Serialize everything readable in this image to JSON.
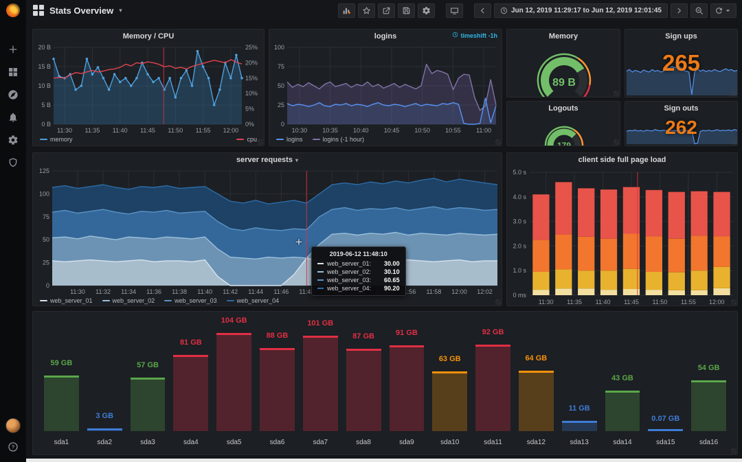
{
  "header": {
    "title": "Stats Overview",
    "time_range": "Jun 12, 2019 11:29:17 to Jun 12, 2019 12:01:45",
    "toolbar_icons": [
      "add-panel",
      "star",
      "share",
      "save",
      "settings"
    ],
    "view_icons": [
      "tv"
    ],
    "time_icons": [
      "chevron-left",
      "clock",
      "chevron-right",
      "zoom-out",
      "refresh",
      "caret-down"
    ],
    "nav_icons": [
      "apps-grid",
      "caret-down"
    ]
  },
  "sidebar": {
    "top_icons": [
      "plus",
      "dashboards",
      "explore",
      "alerting",
      "configuration",
      "shield"
    ],
    "bottom_icons": [
      "avatar",
      "help"
    ]
  },
  "colors": {
    "accent_orange": "#ee7a16",
    "green": "#73bf69",
    "red": "#e02f44",
    "cyan_badge": "#33b5e5"
  },
  "panels": {
    "memory_cpu": {
      "title": "Memory / CPU",
      "chart_data": {
        "type": "line",
        "x_ticks": [
          "11:30",
          "11:35",
          "11:40",
          "11:45",
          "11:50",
          "11:55",
          "12:00"
        ],
        "y_left_ticks": [
          "0 B",
          "5 B",
          "10 B",
          "15 B",
          "20 B"
        ],
        "y_right_ticks": [
          "0%",
          "5%",
          "10%",
          "15%",
          "20%",
          "25%"
        ],
        "y_left_max": 20,
        "y_right_max": 25,
        "series": [
          {
            "name": "memory",
            "axis": "left",
            "color": "#4ea1e0",
            "fill": "rgba(51,120,177,0.32)",
            "markers": true,
            "values": [
              17,
              12.5,
              12,
              13,
              9,
              10,
              17,
              13,
              14.8,
              12,
              9,
              13,
              11,
              12,
              10,
              12,
              16,
              13,
              11,
              12,
              9,
              12,
              7,
              12,
              14,
              10,
              19,
              15,
              12,
              5,
              9,
              16,
              12,
              18,
              12
            ]
          },
          {
            "name": "cpu",
            "axis": "right",
            "color": "#e0444e",
            "values": [
              15,
              15.2,
              15,
              16,
              16.8,
              16.5,
              17,
              17.5,
              17,
              17.3,
              17.8,
              18,
              18.5,
              19.5,
              19,
              20,
              19.7,
              20.3,
              20,
              19.5,
              18.7,
              19,
              18.2,
              18.5,
              18,
              18.8,
              19.3,
              19.8,
              20.3,
              20.8,
              20.4,
              20,
              21,
              20.2,
              19.6
            ]
          }
        ]
      }
    },
    "logins": {
      "title": "logins",
      "badge": "timeshift -1h",
      "chart_data": {
        "type": "line",
        "x_ticks": [
          "10:30",
          "10:35",
          "10:40",
          "10:45",
          "10:50",
          "10:55",
          "11:00"
        ],
        "y_left_ticks": [
          "0",
          "25",
          "50",
          "75",
          "100"
        ],
        "y_left_max": 100,
        "series": [
          {
            "name": "logins (-1 hour)",
            "color": "#8173a8",
            "fill": "rgba(115,98,165,0.28)",
            "values": [
              55,
              48,
              52,
              49,
              54,
              50,
              46,
              52,
              55,
              49,
              51,
              53,
              48,
              52,
              50,
              55,
              49,
              52,
              47,
              50,
              53,
              48,
              52,
              49,
              46,
              50,
              78,
              66,
              70,
              68,
              65,
              45,
              60,
              65,
              64,
              35,
              18,
              24,
              58,
              25
            ]
          },
          {
            "name": "logins",
            "color": "#5794f2",
            "fill": "rgba(87,148,242,0.14)",
            "values": [
              27,
              24,
              26,
              25,
              23,
              25,
              28,
              24,
              23,
              26,
              25,
              27,
              24,
              26,
              25,
              23,
              26,
              28,
              25,
              24,
              26,
              25,
              23,
              25,
              27,
              24,
              26,
              25,
              24,
              27,
              26,
              28,
              26,
              1,
              0,
              0,
              1,
              34,
              2,
              24
            ]
          }
        ]
      }
    },
    "memory_gauge": {
      "title": "Memory",
      "value": "89 B"
    },
    "sign_ups": {
      "title": "Sign ups",
      "value": "265",
      "chart_data": {
        "type": "area-spark",
        "color": "#5794f2",
        "fill": "rgba(70,120,180,0.35)",
        "values": [
          60,
          64,
          58,
          62,
          60,
          57,
          63,
          60,
          58,
          64,
          60,
          62,
          58,
          60,
          74,
          66,
          72,
          68,
          75,
          70,
          62,
          60,
          58,
          2,
          58,
          66,
          60,
          63,
          59,
          62,
          60,
          64,
          61,
          59,
          63,
          66,
          62,
          64,
          60,
          62
        ]
      }
    },
    "logouts": {
      "title": "Logouts",
      "value": "179"
    },
    "sign_outs": {
      "title": "Sign outs",
      "value": "262",
      "chart_data": {
        "type": "area-spark",
        "color": "#5794f2",
        "fill": "rgba(70,120,180,0.35)",
        "values": [
          58,
          62,
          60,
          64,
          59,
          62,
          58,
          63,
          61,
          59,
          66,
          62,
          60,
          63,
          61,
          64,
          60,
          62,
          59,
          63,
          66,
          60,
          62,
          64,
          2,
          4,
          58,
          62,
          60,
          63,
          59,
          62,
          65,
          60,
          63,
          61,
          64,
          60,
          66,
          62
        ]
      }
    },
    "server_requests": {
      "title": "server requests",
      "tooltip": {
        "time": "2019-06-12 11:48:10",
        "rows": [
          {
            "name": "web_server_01:",
            "value": "30.00"
          },
          {
            "name": "web_server_02:",
            "value": "30.10"
          },
          {
            "name": "web_server_03:",
            "value": "60.65"
          },
          {
            "name": "web_server_04:",
            "value": "90.20"
          }
        ]
      },
      "chart_data": {
        "type": "area",
        "x_ticks": [
          "11:30",
          "11:32",
          "11:34",
          "11:36",
          "11:38",
          "11:40",
          "11:42",
          "11:44",
          "11:46",
          "11:48",
          "11:50",
          "11:52",
          "11:54",
          "11:56",
          "11:58",
          "12:00",
          "12:02"
        ],
        "y_left_ticks": [
          "0",
          "25",
          "50",
          "75",
          "100",
          "125"
        ],
        "y_left_max": 125,
        "series": [
          {
            "name": "web_server_04",
            "color": "#2d6ca6",
            "fill": "#1d4266",
            "values": [
              107,
              109,
              106,
              108,
              110,
              107,
              105,
              108,
              107,
              109,
              106,
              107,
              108,
              100,
              92,
              90,
              93,
              89,
              91,
              93,
              90,
              100,
              110,
              112,
              110,
              113,
              111,
              114,
              112,
              115,
              117,
              113,
              116,
              114,
              112,
              110
            ]
          },
          {
            "name": "web_server_03",
            "color": "#5b93c4",
            "fill": "#35689a",
            "values": [
              80,
              82,
              79,
              81,
              83,
              80,
              78,
              81,
              80,
              82,
              79,
              80,
              81,
              70,
              62,
              60,
              63,
              61,
              60,
              62,
              61,
              75,
              83,
              85,
              82,
              84,
              83,
              85,
              82,
              84,
              86,
              83,
              85,
              84,
              82,
              83
            ]
          },
          {
            "name": "web_server_02",
            "color": "#9cc0dc",
            "fill": "#6d93b4",
            "values": [
              52,
              53,
              51,
              54,
              52,
              50,
              53,
              52,
              51,
              53,
              52,
              51,
              53,
              40,
              31,
              30,
              29,
              31,
              30,
              31,
              30,
              45,
              56,
              57,
              55,
              57,
              56,
              58,
              55,
              57,
              56,
              55,
              57,
              56,
              55,
              56
            ]
          },
          {
            "name": "web_server_01",
            "color": "#d5e3ee",
            "fill": "#a8bdcc",
            "values": [
              27,
              26,
              27,
              28,
              27,
              26,
              27,
              28,
              26,
              27,
              27,
              26,
              28,
              10,
              0,
              0,
              0,
              0,
              0,
              12,
              30,
              27,
              26,
              27,
              28,
              27,
              26,
              27,
              28,
              27,
              26,
              27,
              28,
              26,
              27,
              27
            ]
          }
        ],
        "legend_order": [
          "web_server_01",
          "web_server_02",
          "web_server_03",
          "web_server_04"
        ]
      }
    },
    "page_load": {
      "title": "client side full page load",
      "chart_data": {
        "type": "stacked-bar",
        "x_ticks": [
          "11:30",
          "11:35",
          "11:40",
          "11:45",
          "11:50",
          "11:55",
          "12:00"
        ],
        "y_left_ticks": [
          "0 ms",
          "1.0 s",
          "2.0 s",
          "3.0 s",
          "4.0 s",
          "5.0 s"
        ],
        "y_left_max": 5,
        "segment_colors": [
          "#f3e0a0",
          "#e8b22f",
          "#f2762d",
          "#e8534a"
        ],
        "bars": [
          [
            0.22,
            0.73,
            1.3,
            1.85
          ],
          [
            0.27,
            0.78,
            1.42,
            2.13
          ],
          [
            0.27,
            0.73,
            1.38,
            1.97
          ],
          [
            0.22,
            0.78,
            1.3,
            2.0
          ],
          [
            0.25,
            0.82,
            1.43,
            1.9
          ],
          [
            0.22,
            0.73,
            1.45,
            1.88
          ],
          [
            0.2,
            0.73,
            1.37,
            1.9
          ],
          [
            0.2,
            0.8,
            1.42,
            1.81
          ],
          [
            0.28,
            0.87,
            1.25,
            1.8
          ]
        ]
      }
    },
    "disks": {
      "chart_data": {
        "type": "bar-gauge",
        "max": 104,
        "items": [
          {
            "name": "sda1",
            "label": "59 GB",
            "value": 59,
            "color": "#5aa64b"
          },
          {
            "name": "sda2",
            "label": "3 GB",
            "value": 3,
            "color": "#3e7cd6"
          },
          {
            "name": "sda3",
            "label": "57 GB",
            "value": 57,
            "color": "#5aa64b"
          },
          {
            "name": "sda4",
            "label": "81 GB",
            "value": 81,
            "color": "#e02f44"
          },
          {
            "name": "sda5",
            "label": "104 GB",
            "value": 104,
            "color": "#e02f44"
          },
          {
            "name": "sda6",
            "label": "88 GB",
            "value": 88,
            "color": "#e02f44"
          },
          {
            "name": "sda7",
            "label": "101 GB",
            "value": 101,
            "color": "#e02f44"
          },
          {
            "name": "sda8",
            "label": "87 GB",
            "value": 87,
            "color": "#e02f44"
          },
          {
            "name": "sda9",
            "label": "91 GB",
            "value": 91,
            "color": "#e02f44"
          },
          {
            "name": "sda10",
            "label": "63 GB",
            "value": 63,
            "color": "#f5920a"
          },
          {
            "name": "sda11",
            "label": "92 GB",
            "value": 92,
            "color": "#e02f44"
          },
          {
            "name": "sda12",
            "label": "64 GB",
            "value": 64,
            "color": "#f5920a"
          },
          {
            "name": "sda13",
            "label": "11 GB",
            "value": 11,
            "color": "#3e7cd6"
          },
          {
            "name": "sda14",
            "label": "43 GB",
            "value": 43,
            "color": "#5aa64b"
          },
          {
            "name": "sda15",
            "label": "0.07 GB",
            "value": 0.07,
            "color": "#3e7cd6"
          },
          {
            "name": "sda16",
            "label": "54 GB",
            "value": 54,
            "color": "#5aa64b"
          }
        ]
      }
    }
  }
}
